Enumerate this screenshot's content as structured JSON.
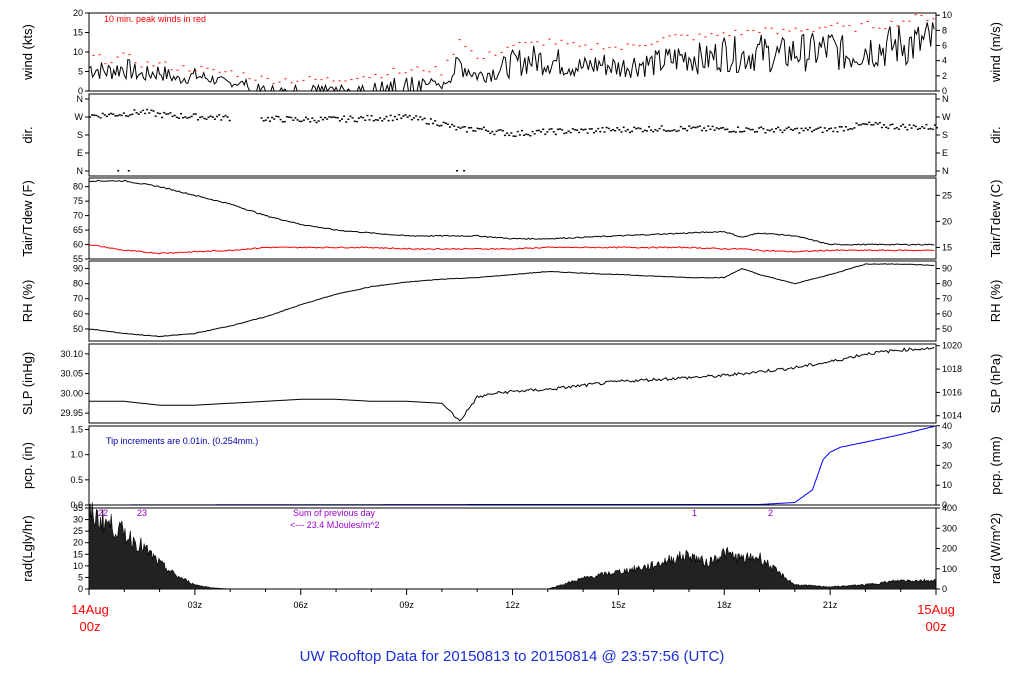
{
  "footer": {
    "title": "UW Rooftop Data for 20150813  to  20150814 @ 23:57:56  (UTC)"
  },
  "colors": {
    "data_line": "#000000",
    "peak_wind": "#ff0000",
    "dewpoint": "#ff0000",
    "precip": "#0000ff",
    "notes": "#0000aa",
    "rad_notes": "#9900cc",
    "date_labels": "#ff0000",
    "footer": "#1c2fd6"
  },
  "chart_data": [
    {
      "type": "line",
      "panel": "wind",
      "ylabel": "wind (kts)",
      "ylabel_right": "wind (m/s)",
      "ylim": [
        0,
        20
      ],
      "yticks": [
        0,
        5,
        10,
        15,
        20
      ],
      "yticks_right": [
        0,
        2,
        4,
        6,
        8,
        10
      ],
      "annotation": "10 min. peak winds in red",
      "x_hours": [
        0,
        0.5,
        1,
        1.5,
        2,
        2.5,
        3,
        3.5,
        4,
        4.5,
        5,
        5.5,
        6,
        6.5,
        7,
        7.5,
        8,
        8.5,
        9,
        9.5,
        10,
        10.5,
        11,
        11.5,
        12,
        12.5,
        13,
        13.5,
        14,
        14.5,
        15,
        15.5,
        16,
        16.5,
        17,
        17.5,
        18,
        18.5,
        19,
        19.5,
        20,
        20.5,
        21,
        21.5,
        22,
        22.5,
        23,
        23.5,
        24
      ],
      "series": [
        {
          "values": [
            6,
            5,
            6,
            4,
            5,
            3,
            4,
            3,
            2,
            2,
            1,
            1,
            1,
            1,
            1,
            1,
            2,
            2,
            3,
            3,
            1,
            7,
            4,
            5,
            7,
            8,
            8,
            7,
            6,
            7,
            6,
            7,
            7,
            8,
            9,
            8,
            10,
            9,
            10,
            9,
            10,
            10,
            11,
            9,
            11,
            11,
            12,
            12,
            13
          ]
        },
        {
          "values": [
            9,
            8,
            9,
            7,
            7,
            6,
            6,
            5,
            5,
            4,
            3,
            3,
            3,
            3,
            3,
            4,
            4,
            5,
            5,
            6,
            5,
            14,
            8,
            10,
            12,
            12,
            13,
            12,
            11,
            12,
            11,
            12,
            13,
            14,
            14,
            14,
            15,
            15,
            16,
            15,
            16,
            16,
            17,
            16,
            17,
            17,
            18,
            19,
            19
          ]
        }
      ]
    },
    {
      "type": "scatter",
      "panel": "dir",
      "ylabel": "dir.",
      "yticks": [
        "N",
        "W",
        "S",
        "E",
        "N"
      ],
      "yticks_right": [
        "N",
        "W",
        "S",
        "E",
        "N"
      ],
      "x_hours": [
        0,
        1,
        1.5,
        2,
        3,
        4,
        5,
        6,
        7,
        8,
        9,
        10,
        10.5,
        11,
        11.5,
        12,
        13,
        14,
        15,
        16,
        17,
        18,
        19,
        20,
        21,
        22,
        23,
        24
      ],
      "values_deg": [
        280,
        290,
        300,
        285,
        275,
        270,
        265,
        260,
        262,
        268,
        272,
        240,
        210,
        215,
        200,
        190,
        200,
        205,
        210,
        215,
        215,
        212,
        210,
        208,
        210,
        235,
        225,
        222
      ]
    },
    {
      "type": "line",
      "panel": "temp",
      "ylabel": "Tair/Tdew (F)",
      "ylabel_right": "Tair/Tdew (C)",
      "ylim": [
        55,
        83
      ],
      "yticks": [
        55,
        60,
        65,
        70,
        75,
        80
      ],
      "yticks_right": [
        15,
        20,
        25
      ],
      "x_hours": [
        0,
        1,
        2,
        3,
        4,
        5,
        6,
        7,
        8,
        9,
        10,
        11,
        12,
        13,
        14,
        15,
        16,
        17,
        18,
        18.5,
        19,
        20,
        21,
        22,
        23,
        24
      ],
      "series": [
        {
          "name": "Tair",
          "values": [
            82,
            82,
            80,
            77,
            74,
            70,
            67,
            65,
            64,
            63,
            63,
            63,
            62,
            62,
            62.5,
            63,
            63.5,
            64,
            64.5,
            62.5,
            64,
            63,
            60,
            60,
            60,
            60
          ]
        },
        {
          "name": "Tdew",
          "values": [
            60,
            58,
            57,
            57.5,
            58,
            59,
            59,
            59,
            59,
            58.5,
            58.5,
            58.5,
            58.5,
            59,
            59,
            59,
            59,
            59,
            58.5,
            58.5,
            58,
            57.5,
            58,
            58,
            58,
            58
          ]
        }
      ]
    },
    {
      "type": "line",
      "panel": "rh",
      "ylabel": "RH (%)",
      "ylim": [
        42,
        95
      ],
      "yticks": [
        50,
        60,
        70,
        80,
        90
      ],
      "yticks_right": [
        50,
        60,
        70,
        80,
        90
      ],
      "x_hours": [
        0,
        1,
        2,
        3,
        4,
        5,
        6,
        7,
        8,
        9,
        10,
        11,
        12,
        13,
        14,
        15,
        16,
        17,
        18,
        18.5,
        19,
        20,
        21,
        22,
        23,
        24
      ],
      "values": [
        50,
        47,
        45,
        47,
        52,
        58,
        66,
        73,
        78,
        81,
        83,
        84,
        86,
        88,
        87,
        86,
        85,
        84,
        84,
        90,
        86,
        80,
        86,
        93,
        93,
        92
      ]
    },
    {
      "type": "line",
      "panel": "slp",
      "ylabel": "SLP (inHg)",
      "ylabel_right": "SLP (hPa)",
      "ylim": [
        29.925,
        30.125
      ],
      "yticks": [
        29.95,
        30.0,
        30.05,
        30.1
      ],
      "yticks_right": [
        1014,
        1016,
        1018,
        1020
      ],
      "x_hours": [
        0,
        1,
        2,
        3,
        4,
        5,
        6,
        7,
        8,
        9,
        10,
        10.5,
        11,
        11.5,
        12,
        13,
        14,
        15,
        16,
        17,
        18,
        19,
        20,
        21,
        22,
        23,
        24
      ],
      "values": [
        29.98,
        29.98,
        29.97,
        29.97,
        29.975,
        29.98,
        29.985,
        29.985,
        29.98,
        29.98,
        29.975,
        29.93,
        29.99,
        30.0,
        30.005,
        30.01,
        30.02,
        30.03,
        30.035,
        30.04,
        30.045,
        30.055,
        30.065,
        30.08,
        30.1,
        30.11,
        30.115
      ]
    },
    {
      "type": "line",
      "panel": "pcp",
      "ylabel": "pcp. (in)",
      "ylabel_right": "pcp. (mm)",
      "ylim": [
        0,
        1.57
      ],
      "yticks": [
        0.0,
        0.5,
        1.0,
        1.5
      ],
      "yticks_right": [
        0,
        10,
        20,
        30,
        40
      ],
      "annotation": "Tip increments are 0.01in. (0.254mm.)",
      "x_hours": [
        0,
        12,
        19,
        20,
        20.5,
        20.8,
        21,
        21.3,
        22,
        23,
        24
      ],
      "values": [
        0,
        0.01,
        0.01,
        0.05,
        0.3,
        0.9,
        1.05,
        1.15,
        1.25,
        1.4,
        1.57
      ]
    },
    {
      "type": "area",
      "panel": "rad",
      "ylabel": "rad(Lgly/hr)",
      "ylabel_right": "rad (W/m^2)",
      "ylim": [
        0,
        35
      ],
      "yticks": [
        0,
        5,
        10,
        15,
        20,
        25,
        30,
        35
      ],
      "yticks_right": [
        0,
        100,
        200,
        300,
        400
      ],
      "annotations": [
        "22",
        "23",
        "Sum of previous day",
        "<--- 23.4 MJoules/m^2",
        "1",
        "2"
      ],
      "x_hours": [
        0,
        0.5,
        1,
        1.5,
        2,
        2.5,
        3,
        3.5,
        4,
        13,
        14,
        15,
        16,
        16.5,
        17,
        17.5,
        18,
        18.5,
        19,
        19.5,
        20,
        21,
        22,
        23,
        24
      ],
      "values": [
        35,
        31,
        26,
        20,
        12,
        6,
        2,
        0.5,
        0,
        0,
        5,
        8,
        11,
        14,
        16,
        12,
        17,
        14,
        15,
        8,
        2,
        1,
        2,
        4,
        4
      ]
    }
  ],
  "x_axis": {
    "ticks": [
      "03z",
      "06z",
      "09z",
      "12z",
      "15z",
      "18z",
      "21z"
    ],
    "start_label": [
      "14Aug",
      "00z"
    ],
    "end_label": [
      "15Aug",
      "00z"
    ]
  }
}
